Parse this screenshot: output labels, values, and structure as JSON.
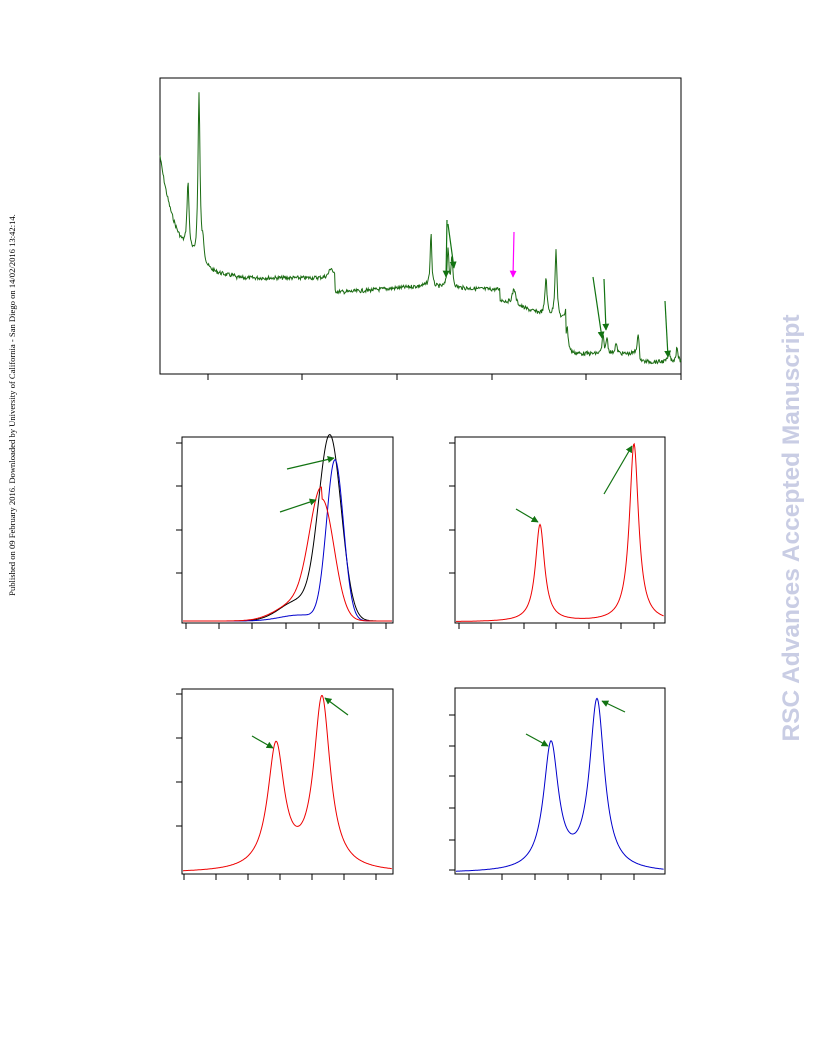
{
  "page": {
    "side_note": "Published on 09 February 2016. Downloaded by University of California - San Diego on 14/02/2016 13:42:14.",
    "watermark": "RSC Advances Accepted Manuscript"
  },
  "colors": {
    "spectrum": "#1a6b12",
    "arrow_green": "#127312",
    "arrow_magenta": "#ff00ff",
    "red": "#ee0000",
    "blue": "#0000cc",
    "black": "#000000"
  },
  "chart_data": [
    {
      "type": "line",
      "panel": "top",
      "series": [
        {
          "color": "spectrum"
        }
      ],
      "markers": {
        "green_arrows": 5,
        "magenta_arrows": 1
      },
      "x_ticks": 5
    },
    {
      "type": "line",
      "panel": "middle-left",
      "series": [
        {
          "color": "black"
        },
        {
          "color": "blue"
        },
        {
          "color": "red"
        }
      ],
      "markers": {
        "green_arrows": 2
      },
      "x_ticks": 7,
      "y_ticks": 4
    },
    {
      "type": "line",
      "panel": "middle-right",
      "series": [
        {
          "color": "red"
        }
      ],
      "markers": {
        "green_arrows": 2
      },
      "x_ticks": 7,
      "y_ticks": 4
    },
    {
      "type": "line",
      "panel": "bottom-left",
      "series": [
        {
          "color": "red"
        }
      ],
      "markers": {
        "green_arrows": 2
      },
      "x_ticks": 7,
      "y_ticks": 4
    },
    {
      "type": "line",
      "panel": "bottom-right",
      "series": [
        {
          "color": "blue"
        }
      ],
      "markers": {
        "green_arrows": 2
      },
      "x_ticks": 6,
      "y_ticks": 6
    }
  ]
}
